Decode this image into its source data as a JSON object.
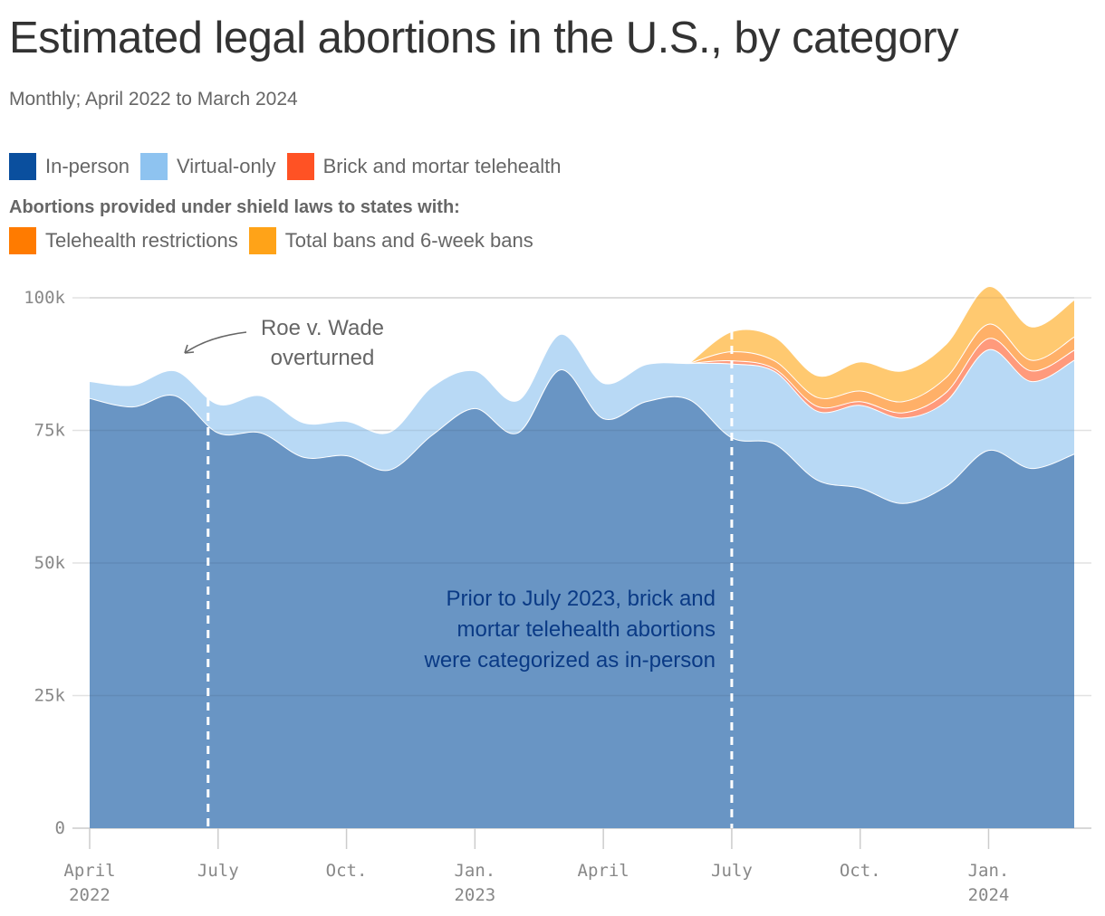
{
  "chart_data": {
    "type": "area",
    "stacked": true,
    "title": "Estimated legal abortions in the U.S., by category",
    "subtitle": "Monthly; April 2022 to March 2024",
    "x": [
      "2022-04",
      "2022-05",
      "2022-06",
      "2022-07",
      "2022-08",
      "2022-09",
      "2022-10",
      "2022-11",
      "2022-12",
      "2023-01",
      "2023-02",
      "2023-03",
      "2023-04",
      "2023-05",
      "2023-06",
      "2023-07",
      "2023-08",
      "2023-09",
      "2023-10",
      "2023-11",
      "2023-12",
      "2024-01",
      "2024-02",
      "2024-03"
    ],
    "x_ticks": [
      {
        "x": "2022-04",
        "line1": "April",
        "line2": "2022"
      },
      {
        "x": "2022-07",
        "line1": "July",
        "line2": ""
      },
      {
        "x": "2022-10",
        "line1": "Oct.",
        "line2": ""
      },
      {
        "x": "2023-01",
        "line1": "Jan.",
        "line2": "2023"
      },
      {
        "x": "2023-04",
        "line1": "April",
        "line2": ""
      },
      {
        "x": "2023-07",
        "line1": "July",
        "line2": ""
      },
      {
        "x": "2023-10",
        "line1": "Oct.",
        "line2": ""
      },
      {
        "x": "2024-01",
        "line1": "Jan.",
        "line2": "2024"
      }
    ],
    "y_ticks": [
      {
        "v": 0,
        "label": "0"
      },
      {
        "v": 25000,
        "label": "25k"
      },
      {
        "v": 50000,
        "label": "50k"
      },
      {
        "v": 75000,
        "label": "75k"
      },
      {
        "v": 100000,
        "label": "100k"
      }
    ],
    "ylim": [
      0,
      100000
    ],
    "grid": true,
    "legend_placement": "top",
    "legend_heading": "Abortions provided under shield laws to states with:",
    "series": [
      {
        "name": "In-person",
        "color": "#0a4f9e",
        "fill": "#6995c4",
        "values": [
          81100,
          79500,
          81600,
          74600,
          74600,
          70000,
          70300,
          67600,
          74200,
          79200,
          74600,
          86500,
          77300,
          80500,
          80900,
          73700,
          72500,
          65700,
          64200,
          61300,
          64500,
          71300,
          67900,
          70600
        ]
      },
      {
        "name": "Virtual-only",
        "color": "#8ec3f0",
        "fill": "#b8d9f5",
        "values": [
          3200,
          4100,
          4700,
          5400,
          7000,
          6500,
          6500,
          7100,
          9100,
          7100,
          6100,
          6700,
          6700,
          7000,
          6800,
          13900,
          13700,
          13000,
          15600,
          16100,
          16000,
          19000,
          16400,
          17700
        ]
      },
      {
        "name": "Brick and mortar telehealth",
        "color": "#ff5224",
        "fill": "#ff9a7c",
        "values": [
          null,
          null,
          null,
          null,
          null,
          null,
          null,
          null,
          null,
          null,
          null,
          null,
          null,
          null,
          0,
          600,
          500,
          900,
          700,
          1000,
          1700,
          2100,
          2000,
          1900
        ]
      },
      {
        "name": "Telehealth restrictions",
        "color": "#ff7b00",
        "fill": "#ffb068",
        "values": [
          null,
          null,
          null,
          null,
          null,
          null,
          null,
          null,
          null,
          null,
          null,
          null,
          null,
          null,
          0,
          1700,
          1500,
          1700,
          2000,
          2100,
          2800,
          2700,
          2000,
          2500
        ]
      },
      {
        "name": "Total bans and 6-week bans",
        "color": "#ffa318",
        "fill": "#ffc970",
        "values": [
          null,
          null,
          null,
          null,
          null,
          null,
          null,
          null,
          null,
          null,
          null,
          null,
          null,
          null,
          0,
          3800,
          4500,
          4100,
          5500,
          5800,
          6300,
          7100,
          6300,
          7000
        ]
      }
    ],
    "annotations": [
      {
        "x": "2022-06-24",
        "text": "Roe v. Wade overturned",
        "line1": "Roe v. Wade",
        "line2": "overturned"
      },
      {
        "x": "2023-07",
        "text": "Prior to July 2023, brick and mortar telehealth abortions were categorized as in-person",
        "lines": [
          "Prior to July 2023, brick and",
          "mortar telehealth abortions",
          "were categorized as in-person"
        ]
      }
    ]
  }
}
